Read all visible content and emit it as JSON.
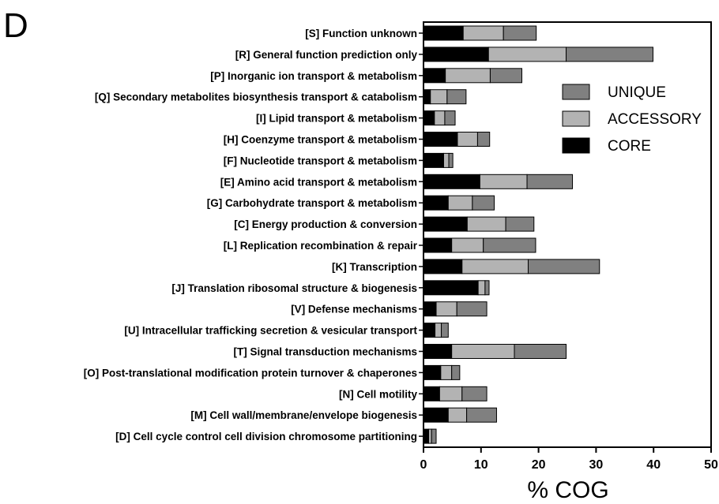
{
  "panel_label": "D",
  "chart_data": {
    "type": "bar",
    "orientation": "horizontal",
    "stacked": true,
    "xlabel": "% COG",
    "ylabel": "",
    "xlim": [
      0,
      50
    ],
    "xticks": [
      0,
      10,
      20,
      30,
      40,
      50
    ],
    "grid": false,
    "legend_position": "right",
    "categories": [
      "[S] Function unknown",
      "[R] General function prediction only",
      "[P] Inorganic ion transport & metabolism",
      "[Q] Secondary metabolites biosynthesis transport & catabolism",
      "[I] Lipid transport & metabolism",
      "[H] Coenzyme transport & metabolism",
      "[F] Nucleotide transport & metabolism",
      "[E] Amino acid transport & metabolism",
      "[G] Carbohydrate transport & metabolism",
      "[C] Energy production & conversion",
      "[L] Replication recombination & repair",
      "[K] Transcription",
      "[J] Translation ribosomal structure & biogenesis",
      "[V] Defense mechanisms",
      "[U] Intracellular trafficking secretion & vesicular transport",
      "[T] Signal transduction mechanisms",
      "[O] Post-translational modification protein turnover & chaperones",
      "[N] Cell motility",
      "[M] Cell wall/membrane/envelope biogenesis",
      "[D] Cell cycle control cell division chromosome partitioning"
    ],
    "series": [
      {
        "name": "CORE",
        "color": "#000000",
        "values": [
          6.9,
          11.3,
          3.8,
          1.2,
          1.9,
          5.9,
          3.5,
          9.8,
          4.3,
          7.6,
          4.9,
          6.7,
          9.5,
          2.2,
          2.0,
          4.9,
          3.0,
          2.8,
          4.3,
          0.9
        ]
      },
      {
        "name": "ACCESSORY",
        "color": "#b3b3b3",
        "values": [
          7.0,
          13.5,
          7.8,
          2.9,
          1.8,
          3.5,
          0.9,
          8.2,
          4.2,
          6.7,
          5.5,
          11.5,
          1.2,
          3.6,
          1.1,
          10.9,
          1.9,
          3.9,
          3.2,
          0.5
        ]
      },
      {
        "name": "UNIQUE",
        "color": "#808080",
        "values": [
          5.7,
          15.1,
          5.5,
          3.3,
          1.8,
          2.1,
          0.7,
          7.9,
          3.8,
          4.9,
          9.1,
          12.4,
          0.7,
          5.2,
          1.2,
          9.0,
          1.4,
          4.3,
          5.2,
          0.8
        ]
      }
    ],
    "legend": [
      "UNIQUE",
      "ACCESSORY",
      "CORE"
    ]
  }
}
